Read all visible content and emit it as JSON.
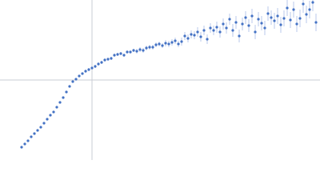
{
  "chart_data": {
    "type": "scatter",
    "x": [
      -88,
      -84,
      -80,
      -76,
      -72,
      -68,
      -64,
      -60,
      -56,
      -52,
      -48,
      -44,
      -40,
      -36,
      -32,
      -28,
      -24,
      -20,
      -16,
      -12,
      -8,
      -4,
      0,
      4,
      8,
      12,
      16,
      20,
      24,
      28,
      32,
      36,
      40,
      44,
      48,
      52,
      56,
      60,
      64,
      68,
      72,
      76,
      80,
      84,
      88,
      92,
      96,
      100,
      104,
      108,
      112,
      116,
      120,
      124,
      128,
      132,
      136,
      140,
      144,
      148,
      152,
      156,
      160,
      164,
      168,
      172,
      176,
      180,
      184,
      188,
      192,
      196,
      200,
      204,
      208,
      212,
      216,
      220,
      224,
      228,
      232,
      236,
      240,
      244,
      248,
      252,
      256,
      260,
      264,
      268,
      272,
      276,
      280
    ],
    "values": [
      -84,
      -80,
      -76,
      -71,
      -67,
      -63,
      -59,
      -54,
      -49,
      -44,
      -40,
      -34,
      -28,
      -22,
      -15,
      -8,
      -2,
      1,
      5,
      8,
      11,
      13,
      15,
      17,
      20,
      22,
      25,
      26,
      27,
      31,
      32,
      33,
      31,
      35,
      35,
      37,
      36,
      38,
      37,
      40,
      41,
      41,
      44,
      45,
      43,
      46,
      45,
      47,
      49,
      45,
      48,
      55,
      52,
      57,
      56,
      60,
      54,
      62,
      51,
      65,
      62,
      66,
      60,
      70,
      65,
      76,
      62,
      72,
      55,
      70,
      78,
      68,
      80,
      60,
      76,
      71,
      65,
      83,
      78,
      74,
      80,
      69,
      77,
      90,
      75,
      88,
      70,
      77,
      95,
      82,
      88,
      97,
      72
    ],
    "errors": [
      1,
      1,
      1,
      1,
      1,
      1,
      1,
      1,
      1,
      1,
      1,
      1,
      1,
      1,
      1,
      1,
      1,
      1,
      1,
      1,
      2,
      2,
      2,
      2,
      2,
      2,
      2,
      2,
      2,
      2,
      2,
      2,
      2,
      2,
      2,
      2,
      3,
      3,
      3,
      3,
      3,
      3,
      3,
      3,
      3,
      4,
      4,
      4,
      4,
      4,
      5,
      5,
      5,
      5,
      5,
      6,
      6,
      6,
      6,
      6,
      6,
      7,
      7,
      7,
      7,
      7,
      8,
      8,
      8,
      8,
      8,
      8,
      9,
      9,
      9,
      9,
      9,
      9,
      9,
      10,
      10,
      10,
      10,
      10,
      10,
      10,
      10,
      11,
      11,
      11,
      11,
      11,
      11
    ],
    "color": "#4472c4",
    "error_color": "#a9bde6",
    "xlim": [
      -115,
      285
    ],
    "ylim": [
      -100,
      100
    ]
  }
}
